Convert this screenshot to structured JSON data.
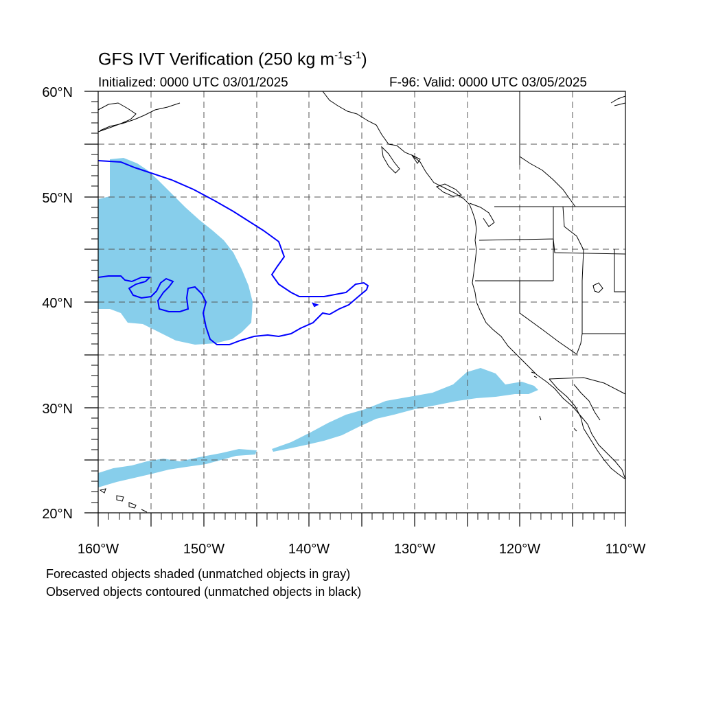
{
  "title": "GFS IVT Verification (250 kg m",
  "title_exp1": "-1",
  "title_mid": "s",
  "title_exp2": "-1",
  "title_end": ")",
  "initialized": "Initialized: 0000 UTC 03/01/2025",
  "valid": "F-96: Valid: 0000 UTC 03/05/2025",
  "note_forecast": "Forecasted objects shaded (unmatched objects in gray)",
  "note_observed": "Observed objects contoured (unmatched objects in black)",
  "map": {
    "lon_range": [
      -160,
      -110
    ],
    "lat_range": [
      20,
      60
    ],
    "lon_labels": [
      "160°W",
      "150°W",
      "140°W",
      "130°W",
      "120°W",
      "110°W"
    ],
    "lat_labels": [
      "60°N",
      "50°N",
      "40°N",
      "30°N",
      "20°N"
    ]
  },
  "colors": {
    "forecast_fill": "#87ceeb",
    "observed_contour": "#0000ff",
    "coastline": "#000000",
    "grid": "#555555"
  }
}
